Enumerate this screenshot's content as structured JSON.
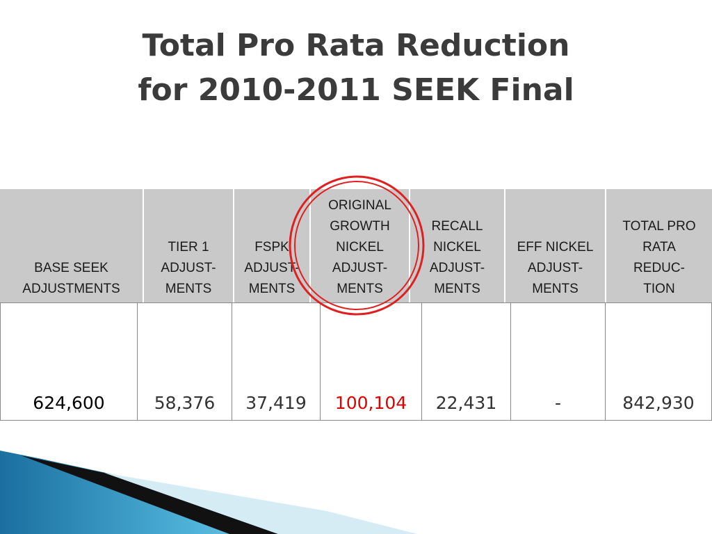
{
  "title": [
    "Total Pro Rata Reduction",
    "for 2010-2011 SEEK Final"
  ],
  "table": {
    "header": [
      "BASE SEEK\nADJUSTMENTS",
      "TIER 1\nADJUST-\nMENTS",
      "FSPK\nADJUST-\nMENTS",
      "ORIGINAL\nGROWTH\nNICKEL\nADJUST-\nMENTS",
      "RECALL\nNICKEL\nADJUST-\nMENTS",
      "EFF NICKEL\nADJUST-\nMENTS",
      "TOTAL PRO\nRATA\nREDUC-\nTION"
    ],
    "rows": [
      [
        "624,600",
        "58,376",
        "37,419",
        "100,104",
        "22,431",
        "-",
        "842,930"
      ]
    ]
  }
}
